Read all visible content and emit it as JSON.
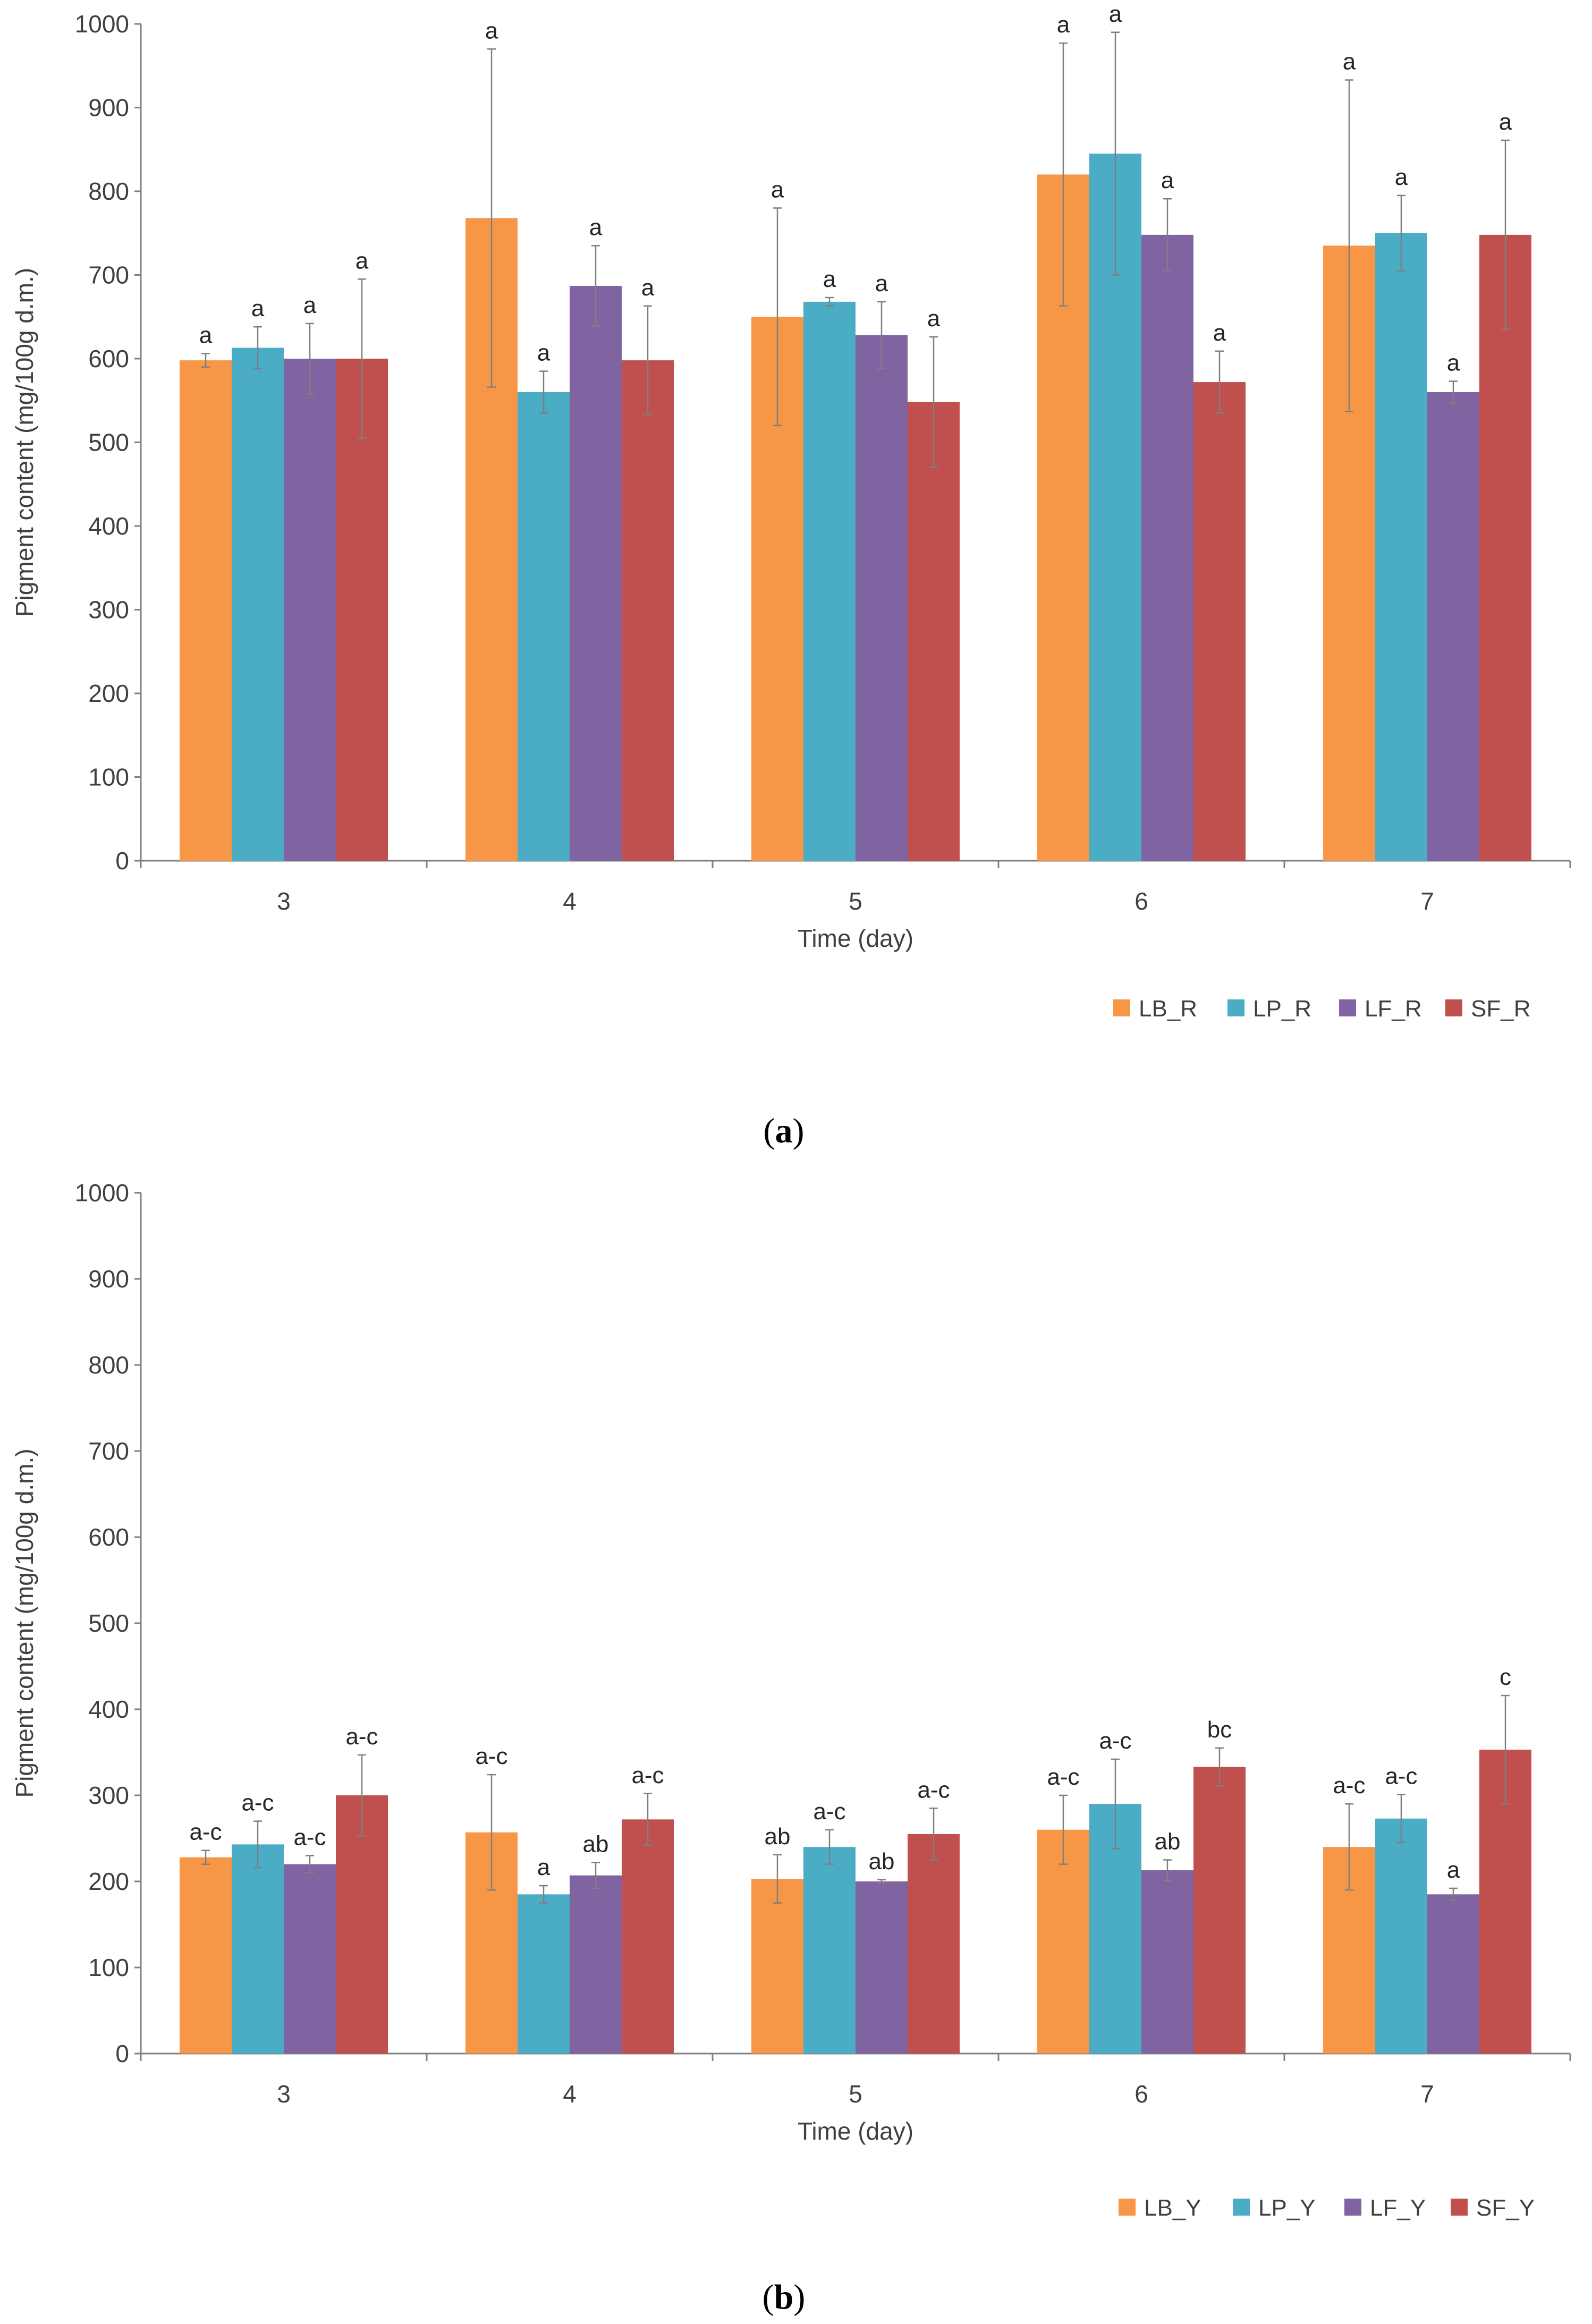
{
  "colors": {
    "LB": "#F79646",
    "LP": "#4BACC6",
    "LF": "#8064A2",
    "SF": "#C0504D"
  },
  "chart_data": [
    {
      "type": "bar",
      "panel_label": "a",
      "xlabel": "Time (day)",
      "ylabel": "Pigment content (mg/100g d.m.)",
      "ylim": [
        0,
        1000
      ],
      "yticks": [
        "0",
        "100",
        "200",
        "300",
        "400",
        "500",
        "600",
        "700",
        "800",
        "900",
        "1000"
      ],
      "categories": [
        "3",
        "4",
        "5",
        "6",
        "7"
      ],
      "legend_position": "bottom-right",
      "series": [
        {
          "name": "LB_R",
          "color_key": "LB",
          "values": [
            598,
            768,
            650,
            820,
            735
          ],
          "err": [
            8,
            202,
            130,
            157,
            198
          ],
          "labels": [
            "a",
            "a",
            "a",
            "a",
            "a"
          ]
        },
        {
          "name": "LP_R",
          "color_key": "LP",
          "values": [
            613,
            560,
            668,
            845,
            750
          ],
          "err": [
            25,
            25,
            5,
            145,
            45
          ],
          "labels": [
            "a",
            "a",
            "a",
            "a",
            "a"
          ]
        },
        {
          "name": "LF_R",
          "color_key": "LF",
          "values": [
            600,
            687,
            628,
            748,
            560
          ],
          "err": [
            42,
            48,
            40,
            43,
            13
          ],
          "labels": [
            "a",
            "a",
            "a",
            "a",
            "a"
          ]
        },
        {
          "name": "SF_R",
          "color_key": "SF",
          "values": [
            600,
            598,
            548,
            572,
            748
          ],
          "err": [
            95,
            65,
            78,
            37,
            113
          ],
          "labels": [
            "a",
            "a",
            "a",
            "a",
            "a"
          ]
        }
      ]
    },
    {
      "type": "bar",
      "panel_label": "b",
      "xlabel": "Time (day)",
      "ylabel": "Pigment content (mg/100g d.m.)",
      "ylim": [
        0,
        1000
      ],
      "yticks": [
        "0",
        "100",
        "200",
        "300",
        "400",
        "500",
        "600",
        "700",
        "800",
        "900",
        "1000"
      ],
      "categories": [
        "3",
        "4",
        "5",
        "6",
        "7"
      ],
      "legend_position": "bottom-right",
      "series": [
        {
          "name": "LB_Y",
          "color_key": "LB",
          "values": [
            228,
            257,
            203,
            260,
            240
          ],
          "err": [
            8,
            67,
            28,
            40,
            50
          ],
          "labels": [
            "a-c",
            "a-c",
            "ab",
            "a-c",
            "a-c"
          ]
        },
        {
          "name": "LP_Y",
          "color_key": "LP",
          "values": [
            243,
            185,
            240,
            290,
            273
          ],
          "err": [
            27,
            10,
            20,
            52,
            28
          ],
          "labels": [
            "a-c",
            "a",
            "a-c",
            "a-c",
            "a-c"
          ]
        },
        {
          "name": "LF_Y",
          "color_key": "LF",
          "values": [
            220,
            207,
            200,
            213,
            185
          ],
          "err": [
            10,
            15,
            2,
            12,
            7
          ],
          "labels": [
            "a-c",
            "ab",
            "ab",
            "ab",
            "a"
          ]
        },
        {
          "name": "SF_Y",
          "color_key": "SF",
          "values": [
            300,
            272,
            255,
            333,
            353
          ],
          "err": [
            47,
            30,
            30,
            22,
            63
          ],
          "labels": [
            "a-c",
            "a-c",
            "a-c",
            "bc",
            "c"
          ]
        }
      ]
    }
  ]
}
